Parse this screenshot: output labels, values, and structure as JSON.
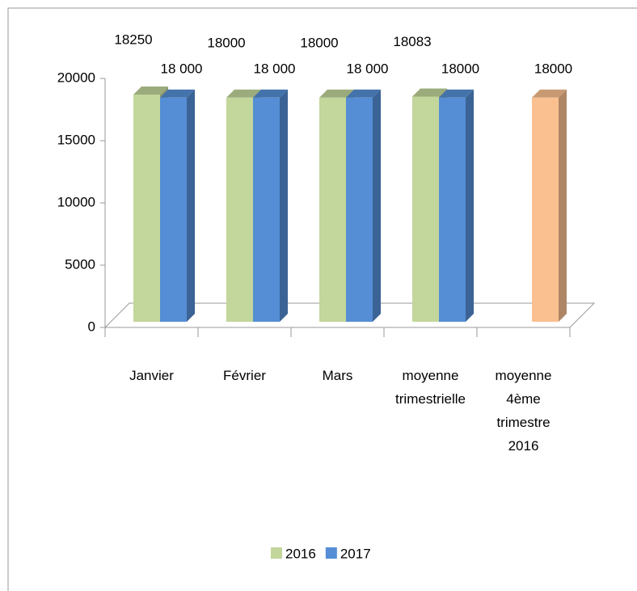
{
  "chart_data": {
    "type": "bar3d",
    "categories": [
      "Janvier",
      "Février",
      "Mars",
      "moyenne\ntrimestrielle",
      "moyenne\n4ème\ntrimestre\n2016"
    ],
    "series": [
      {
        "name": "2016",
        "color": "#c3d69b",
        "values": [
          18250,
          18000,
          18000,
          18083,
          null
        ]
      },
      {
        "name": "2017",
        "color": "#558ed5",
        "colors": [
          "#558ed5",
          "#558ed5",
          "#558ed5",
          "#558ed5",
          "#fac090"
        ],
        "values": [
          18000,
          18000,
          18000,
          18000,
          18000
        ],
        "value_labels": [
          "18 000",
          "18 000",
          "18 000",
          "18000",
          "18000"
        ]
      }
    ],
    "ylim": [
      0,
      20000
    ],
    "yticks": [
      0,
      5000,
      10000,
      15000,
      20000
    ],
    "grid": false,
    "legend": "bottom"
  }
}
